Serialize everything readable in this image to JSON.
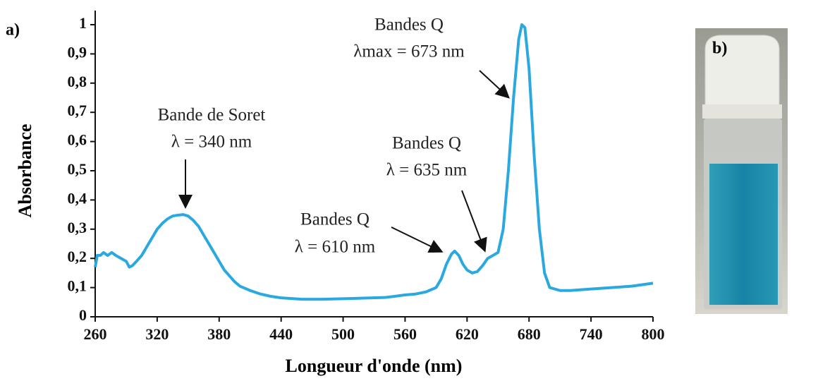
{
  "panel_a": "a)",
  "panel_b": "b)",
  "chart_data": {
    "type": "line",
    "xlabel": "Longueur d'onde (nm)",
    "ylabel": "Absorbance",
    "x": [
      260,
      262,
      265,
      268,
      272,
      276,
      280,
      285,
      290,
      293,
      296,
      300,
      305,
      310,
      315,
      320,
      325,
      330,
      335,
      340,
      345,
      350,
      355,
      360,
      365,
      370,
      375,
      380,
      385,
      390,
      395,
      400,
      410,
      420,
      430,
      440,
      460,
      480,
      500,
      520,
      540,
      550,
      560,
      570,
      580,
      590,
      595,
      600,
      605,
      608,
      612,
      616,
      620,
      625,
      630,
      635,
      640,
      645,
      650,
      655,
      660,
      665,
      670,
      673,
      676,
      680,
      685,
      690,
      695,
      700,
      710,
      720,
      740,
      760,
      780,
      800
    ],
    "values": [
      0.17,
      0.21,
      0.21,
      0.22,
      0.21,
      0.22,
      0.21,
      0.2,
      0.19,
      0.17,
      0.175,
      0.19,
      0.21,
      0.24,
      0.27,
      0.3,
      0.32,
      0.335,
      0.345,
      0.348,
      0.35,
      0.345,
      0.33,
      0.31,
      0.28,
      0.25,
      0.22,
      0.19,
      0.16,
      0.14,
      0.12,
      0.105,
      0.09,
      0.078,
      0.07,
      0.065,
      0.06,
      0.06,
      0.062,
      0.064,
      0.066,
      0.07,
      0.075,
      0.078,
      0.085,
      0.1,
      0.13,
      0.18,
      0.215,
      0.225,
      0.21,
      0.18,
      0.16,
      0.15,
      0.155,
      0.175,
      0.2,
      0.21,
      0.22,
      0.3,
      0.5,
      0.75,
      0.95,
      1.0,
      0.99,
      0.85,
      0.55,
      0.3,
      0.15,
      0.1,
      0.09,
      0.09,
      0.095,
      0.1,
      0.105,
      0.115
    ],
    "color": "#29a9e0",
    "xlim": [
      260,
      800
    ],
    "xticks": [
      260,
      320,
      380,
      440,
      500,
      560,
      620,
      680,
      740,
      800
    ],
    "ylim": [
      0,
      1
    ],
    "yticks": [
      0,
      {
        "value": 0.1,
        "label": "0,1"
      },
      {
        "value": 0.2,
        "label": "0,2"
      },
      {
        "value": 0.3,
        "label": "0,3"
      },
      {
        "value": 0.4,
        "label": "0,4"
      },
      {
        "value": 0.5,
        "label": "0,5"
      },
      {
        "value": 0.6,
        "label": "0,6"
      },
      {
        "value": 0.7,
        "label": "0,7"
      },
      {
        "value": 0.8,
        "label": "0,8"
      },
      {
        "value": 0.9,
        "label": "0,9"
      },
      1
    ],
    "annotations": [
      [
        "Bande de Soret",
        "λ = 340 nm"
      ],
      [
        "Bandes Q",
        "λ = 610 nm"
      ],
      [
        "Bandes Q",
        "λ = 635 nm"
      ],
      [
        "Bandes Q",
        "λmax = 673 nm"
      ]
    ]
  }
}
